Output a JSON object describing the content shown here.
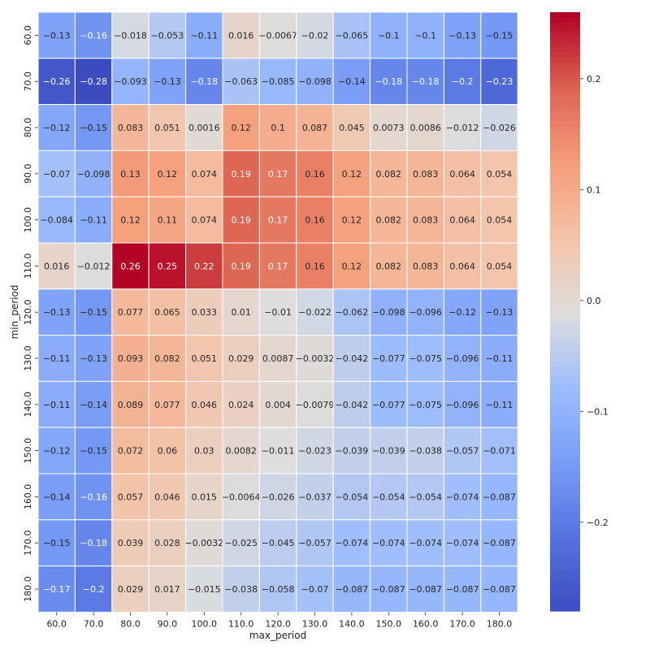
{
  "chart_data": {
    "type": "heatmap",
    "xlabel": "max_period",
    "ylabel": "min_period",
    "x_categories": [
      "60.0",
      "70.0",
      "80.0",
      "90.0",
      "100.0",
      "110.0",
      "120.0",
      "130.0",
      "140.0",
      "150.0",
      "160.0",
      "170.0",
      "180.0"
    ],
    "y_categories": [
      "60.0",
      "70.0",
      "80.0",
      "90.0",
      "100.0",
      "110.0",
      "120.0",
      "130.0",
      "140.0",
      "150.0",
      "160.0",
      "170.0",
      "180.0"
    ],
    "values": [
      [
        -0.13,
        -0.16,
        -0.018,
        -0.053,
        -0.11,
        0.016,
        -0.0067,
        -0.02,
        -0.065,
        -0.1,
        -0.1,
        -0.13,
        -0.15
      ],
      [
        -0.26,
        -0.28,
        -0.093,
        -0.13,
        -0.18,
        -0.063,
        -0.085,
        -0.098,
        -0.14,
        -0.18,
        -0.18,
        -0.2,
        -0.23
      ],
      [
        -0.12,
        -0.15,
        0.083,
        0.051,
        0.0016,
        0.12,
        0.1,
        0.087,
        0.045,
        0.0073,
        0.0086,
        -0.012,
        -0.026
      ],
      [
        -0.07,
        -0.098,
        0.13,
        0.12,
        0.074,
        0.19,
        0.17,
        0.16,
        0.12,
        0.082,
        0.083,
        0.064,
        0.054
      ],
      [
        -0.084,
        -0.11,
        0.12,
        0.11,
        0.074,
        0.19,
        0.17,
        0.16,
        0.12,
        0.082,
        0.083,
        0.064,
        0.054
      ],
      [
        0.016,
        -0.012,
        0.26,
        0.25,
        0.22,
        0.19,
        0.17,
        0.16,
        0.12,
        0.082,
        0.083,
        0.064,
        0.054
      ],
      [
        -0.13,
        -0.15,
        0.077,
        0.065,
        0.033,
        0.01,
        -0.01,
        -0.022,
        -0.062,
        -0.098,
        -0.096,
        -0.12,
        -0.13
      ],
      [
        -0.11,
        -0.13,
        0.093,
        0.082,
        0.051,
        0.029,
        0.0087,
        -0.0032,
        -0.042,
        -0.077,
        -0.075,
        -0.096,
        -0.11
      ],
      [
        -0.11,
        -0.14,
        0.089,
        0.077,
        0.046,
        0.024,
        0.004,
        -0.0079,
        -0.042,
        -0.077,
        -0.075,
        -0.096,
        -0.11
      ],
      [
        -0.12,
        -0.15,
        0.072,
        0.06,
        0.03,
        0.0082,
        -0.011,
        -0.023,
        -0.039,
        -0.039,
        -0.038,
        -0.057,
        -0.071
      ],
      [
        -0.14,
        -0.16,
        0.057,
        0.046,
        0.015,
        -0.0064,
        -0.026,
        -0.037,
        -0.054,
        -0.054,
        -0.054,
        -0.074,
        -0.087
      ],
      [
        -0.15,
        -0.18,
        0.039,
        0.028,
        -0.0032,
        -0.025,
        -0.045,
        -0.057,
        -0.074,
        -0.074,
        -0.074,
        -0.074,
        -0.087
      ],
      [
        -0.17,
        -0.2,
        0.029,
        0.017,
        -0.015,
        -0.038,
        -0.058,
        -0.07,
        -0.087,
        -0.087,
        -0.087,
        -0.087,
        -0.087
      ]
    ],
    "vmin": -0.28,
    "vmax": 0.26,
    "colormap": "coolwarm",
    "colorbar_ticks": [
      {
        "value": 0.2,
        "label": "0.2"
      },
      {
        "value": 0.1,
        "label": "0.1"
      },
      {
        "value": 0.0,
        "label": "0.0"
      },
      {
        "value": -0.1,
        "label": "−0.1"
      },
      {
        "value": -0.2,
        "label": "−0.2"
      }
    ],
    "grid_lines_color": "#ffffff"
  }
}
